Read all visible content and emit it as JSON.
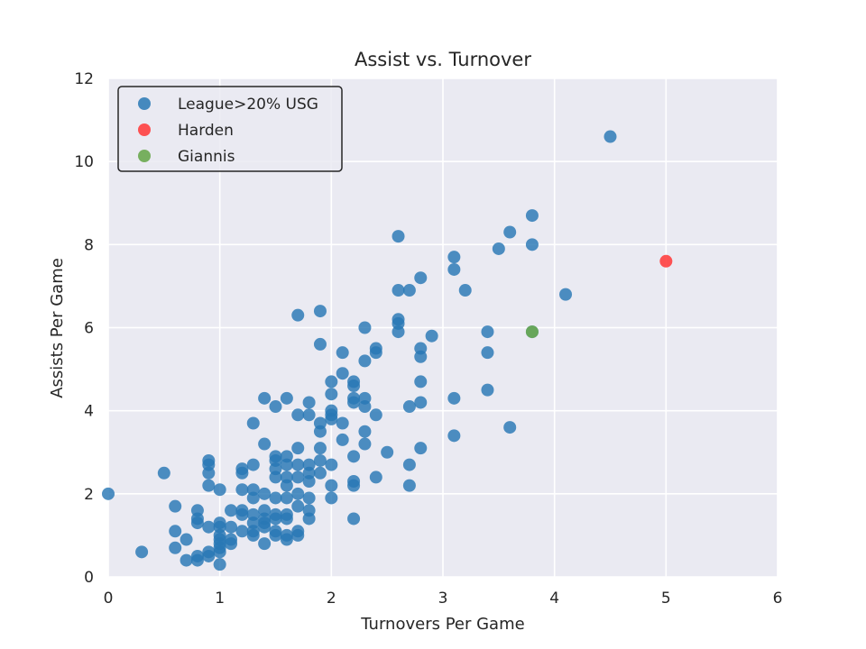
{
  "chart_data": {
    "type": "scatter",
    "title": "Assist vs. Turnover",
    "xlabel": "Turnovers Per Game",
    "ylabel": "Assists Per Game",
    "xlim": [
      0,
      6
    ],
    "ylim": [
      0,
      12
    ],
    "xticks": [
      "0",
      "1",
      "2",
      "3",
      "4",
      "5",
      "6"
    ],
    "yticks": [
      "0",
      "2",
      "4",
      "6",
      "8",
      "10",
      "12"
    ],
    "grid": true,
    "legend_position": "top-left",
    "series": [
      {
        "name": "League>20% USG",
        "color": "#2878b5",
        "points": [
          [
            0,
            2.0
          ],
          [
            0.3,
            0.6
          ],
          [
            0.5,
            2.5
          ],
          [
            0.6,
            1.7
          ],
          [
            0.6,
            1.1
          ],
          [
            0.6,
            0.7
          ],
          [
            0.7,
            0.9
          ],
          [
            0.7,
            0.4
          ],
          [
            0.8,
            1.6
          ],
          [
            0.8,
            1.4
          ],
          [
            0.8,
            1.3
          ],
          [
            0.8,
            0.5
          ],
          [
            0.8,
            0.4
          ],
          [
            0.9,
            2.8
          ],
          [
            0.9,
            2.7
          ],
          [
            0.9,
            2.5
          ],
          [
            0.9,
            2.2
          ],
          [
            0.9,
            1.2
          ],
          [
            0.9,
            0.6
          ],
          [
            0.9,
            0.5
          ],
          [
            1.0,
            2.1
          ],
          [
            1.0,
            1.3
          ],
          [
            1.0,
            1.2
          ],
          [
            1.0,
            1.0
          ],
          [
            1.0,
            0.9
          ],
          [
            1.0,
            0.8
          ],
          [
            1.0,
            0.7
          ],
          [
            1.0,
            0.6
          ],
          [
            1.0,
            0.3
          ],
          [
            1.1,
            1.6
          ],
          [
            1.1,
            1.2
          ],
          [
            1.1,
            0.9
          ],
          [
            1.1,
            0.8
          ],
          [
            1.2,
            2.6
          ],
          [
            1.2,
            2.5
          ],
          [
            1.2,
            2.1
          ],
          [
            1.2,
            1.6
          ],
          [
            1.2,
            1.5
          ],
          [
            1.2,
            1.1
          ],
          [
            1.3,
            3.7
          ],
          [
            1.3,
            2.7
          ],
          [
            1.3,
            2.1
          ],
          [
            1.3,
            1.9
          ],
          [
            1.3,
            1.5
          ],
          [
            1.3,
            1.3
          ],
          [
            1.3,
            1.1
          ],
          [
            1.3,
            1.0
          ],
          [
            1.4,
            4.3
          ],
          [
            1.4,
            3.2
          ],
          [
            1.4,
            2.0
          ],
          [
            1.4,
            1.6
          ],
          [
            1.4,
            1.4
          ],
          [
            1.4,
            1.3
          ],
          [
            1.4,
            1.2
          ],
          [
            1.4,
            0.8
          ],
          [
            1.5,
            4.1
          ],
          [
            1.5,
            2.9
          ],
          [
            1.5,
            2.8
          ],
          [
            1.5,
            2.6
          ],
          [
            1.5,
            2.4
          ],
          [
            1.5,
            1.9
          ],
          [
            1.5,
            1.5
          ],
          [
            1.5,
            1.4
          ],
          [
            1.5,
            1.1
          ],
          [
            1.5,
            1.0
          ],
          [
            1.6,
            4.3
          ],
          [
            1.6,
            2.9
          ],
          [
            1.6,
            2.7
          ],
          [
            1.6,
            2.4
          ],
          [
            1.6,
            2.2
          ],
          [
            1.6,
            1.9
          ],
          [
            1.6,
            1.5
          ],
          [
            1.6,
            1.4
          ],
          [
            1.6,
            1.0
          ],
          [
            1.6,
            0.9
          ],
          [
            1.7,
            6.3
          ],
          [
            1.7,
            3.9
          ],
          [
            1.7,
            3.1
          ],
          [
            1.7,
            2.7
          ],
          [
            1.7,
            2.4
          ],
          [
            1.7,
            2.0
          ],
          [
            1.7,
            1.7
          ],
          [
            1.7,
            1.1
          ],
          [
            1.7,
            1.0
          ],
          [
            1.8,
            4.2
          ],
          [
            1.8,
            3.9
          ],
          [
            1.8,
            2.7
          ],
          [
            1.8,
            2.5
          ],
          [
            1.8,
            2.3
          ],
          [
            1.8,
            1.9
          ],
          [
            1.8,
            1.6
          ],
          [
            1.8,
            1.4
          ],
          [
            1.9,
            6.4
          ],
          [
            1.9,
            5.6
          ],
          [
            1.9,
            3.7
          ],
          [
            1.9,
            3.5
          ],
          [
            1.9,
            3.1
          ],
          [
            1.9,
            2.8
          ],
          [
            1.9,
            2.5
          ],
          [
            2.0,
            4.7
          ],
          [
            2.0,
            4.4
          ],
          [
            2.0,
            4.0
          ],
          [
            2.0,
            3.9
          ],
          [
            2.0,
            3.8
          ],
          [
            2.0,
            2.7
          ],
          [
            2.0,
            2.2
          ],
          [
            2.0,
            1.9
          ],
          [
            2.1,
            5.4
          ],
          [
            2.1,
            4.9
          ],
          [
            2.1,
            3.7
          ],
          [
            2.1,
            3.3
          ],
          [
            2.2,
            4.7
          ],
          [
            2.2,
            4.6
          ],
          [
            2.2,
            4.3
          ],
          [
            2.2,
            4.2
          ],
          [
            2.2,
            2.9
          ],
          [
            2.2,
            2.3
          ],
          [
            2.2,
            2.2
          ],
          [
            2.2,
            1.4
          ],
          [
            2.3,
            6.0
          ],
          [
            2.3,
            5.2
          ],
          [
            2.3,
            4.3
          ],
          [
            2.3,
            4.1
          ],
          [
            2.3,
            3.5
          ],
          [
            2.3,
            3.2
          ],
          [
            2.4,
            5.5
          ],
          [
            2.4,
            5.4
          ],
          [
            2.4,
            3.9
          ],
          [
            2.4,
            2.4
          ],
          [
            2.5,
            3.0
          ],
          [
            2.6,
            8.2
          ],
          [
            2.6,
            6.9
          ],
          [
            2.6,
            6.2
          ],
          [
            2.6,
            6.1
          ],
          [
            2.6,
            5.9
          ],
          [
            2.7,
            6.9
          ],
          [
            2.7,
            4.1
          ],
          [
            2.7,
            2.7
          ],
          [
            2.7,
            2.2
          ],
          [
            2.8,
            7.2
          ],
          [
            2.8,
            5.5
          ],
          [
            2.8,
            5.3
          ],
          [
            2.8,
            4.7
          ],
          [
            2.8,
            4.2
          ],
          [
            2.8,
            3.1
          ],
          [
            2.9,
            5.8
          ],
          [
            3.1,
            7.7
          ],
          [
            3.1,
            7.4
          ],
          [
            3.1,
            4.3
          ],
          [
            3.1,
            3.4
          ],
          [
            3.2,
            6.9
          ],
          [
            3.4,
            5.9
          ],
          [
            3.4,
            5.4
          ],
          [
            3.4,
            4.5
          ],
          [
            3.5,
            7.9
          ],
          [
            3.6,
            8.3
          ],
          [
            3.6,
            3.6
          ],
          [
            3.8,
            8.7
          ],
          [
            3.8,
            8.0
          ],
          [
            3.8,
            5.9
          ],
          [
            4.1,
            6.8
          ],
          [
            4.5,
            10.6
          ]
        ]
      },
      {
        "name": "Harden",
        "color": "#ff4040",
        "points": [
          [
            5.0,
            7.6
          ]
        ]
      },
      {
        "name": "Giannis",
        "color": "#6aa84f",
        "points": [
          [
            3.8,
            5.9
          ]
        ]
      }
    ]
  }
}
